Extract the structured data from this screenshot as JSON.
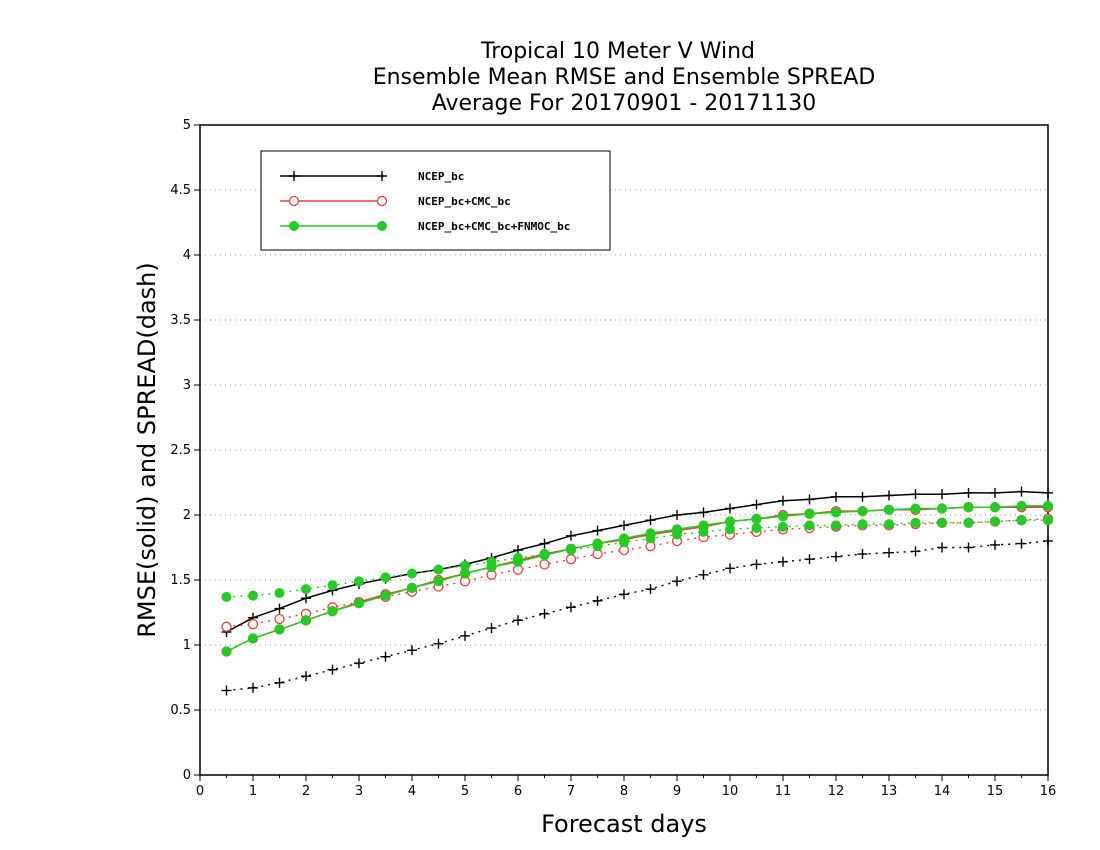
{
  "chart_data": {
    "type": "line",
    "title_lines": [
      "Tropical 10 Meter V Wind",
      "Ensemble Mean RMSE and Ensemble SPREAD",
      "Average For 20170901 - 20171130"
    ],
    "xlabel": "Forecast days",
    "ylabel": "RMSE(solid) and SPREAD(dash)",
    "xlim": [
      0,
      16
    ],
    "ylim": [
      0,
      5
    ],
    "xticks": [
      "0",
      "1",
      "2",
      "3",
      "4",
      "5",
      "6",
      "7",
      "8",
      "9",
      "10",
      "11",
      "12",
      "13",
      "14",
      "15",
      "16"
    ],
    "yticks": [
      "0",
      "0.5",
      "1",
      "1.5",
      "2",
      "2.5",
      "3",
      "3.5",
      "4",
      "4.5",
      "5"
    ],
    "grid": "horizontal-dotted",
    "legend_position": "top-left",
    "x": [
      0.5,
      1,
      1.5,
      2,
      2.5,
      3,
      3.5,
      4,
      4.5,
      5,
      5.5,
      6,
      6.5,
      7,
      7.5,
      8,
      8.5,
      9,
      9.5,
      10,
      10.5,
      11,
      11.5,
      12,
      12.5,
      13,
      13.5,
      14,
      14.5,
      15,
      15.5,
      16
    ],
    "series": [
      {
        "name": "NCEP_bc",
        "color": "#000000",
        "marker": "plus",
        "rmse": [
          1.1,
          1.21,
          1.28,
          1.36,
          1.42,
          1.47,
          1.51,
          1.55,
          1.58,
          1.62,
          1.67,
          1.73,
          1.78,
          1.84,
          1.88,
          1.92,
          1.96,
          2.0,
          2.02,
          2.05,
          2.08,
          2.11,
          2.12,
          2.14,
          2.14,
          2.15,
          2.16,
          2.16,
          2.17,
          2.17,
          2.18,
          2.17
        ],
        "spread": [
          0.65,
          0.67,
          0.71,
          0.76,
          0.81,
          0.86,
          0.91,
          0.96,
          1.01,
          1.07,
          1.13,
          1.19,
          1.24,
          1.29,
          1.34,
          1.39,
          1.43,
          1.49,
          1.54,
          1.59,
          1.62,
          1.64,
          1.66,
          1.68,
          1.7,
          1.71,
          1.72,
          1.75,
          1.75,
          1.77,
          1.78,
          1.8
        ]
      },
      {
        "name": "NCEP_bc+CMC_bc",
        "color": "#e8403a",
        "marker": "open-circle",
        "rmse": [
          0.95,
          1.05,
          1.12,
          1.19,
          1.26,
          1.33,
          1.39,
          1.44,
          1.5,
          1.55,
          1.6,
          1.65,
          1.7,
          1.74,
          1.78,
          1.81,
          1.85,
          1.88,
          1.91,
          1.95,
          1.97,
          2.0,
          2.01,
          2.03,
          2.03,
          2.04,
          2.04,
          2.05,
          2.06,
          2.06,
          2.06,
          2.06
        ],
        "spread": [
          1.14,
          1.16,
          1.2,
          1.24,
          1.29,
          1.33,
          1.37,
          1.41,
          1.45,
          1.49,
          1.54,
          1.58,
          1.62,
          1.66,
          1.7,
          1.73,
          1.76,
          1.8,
          1.83,
          1.85,
          1.87,
          1.89,
          1.9,
          1.91,
          1.92,
          1.92,
          1.93,
          1.94,
          1.94,
          1.95,
          1.96,
          1.97
        ]
      },
      {
        "name": "NCEP_bc+CMC_bc+FNMOC_bc",
        "color": "#22cc22",
        "marker": "filled-circle",
        "rmse": [
          0.95,
          1.05,
          1.12,
          1.19,
          1.26,
          1.32,
          1.38,
          1.44,
          1.49,
          1.55,
          1.6,
          1.64,
          1.69,
          1.74,
          1.78,
          1.82,
          1.86,
          1.89,
          1.92,
          1.95,
          1.97,
          1.99,
          2.01,
          2.02,
          2.03,
          2.04,
          2.05,
          2.05,
          2.06,
          2.06,
          2.07,
          2.07
        ],
        "spread": [
          1.37,
          1.38,
          1.4,
          1.43,
          1.46,
          1.49,
          1.52,
          1.55,
          1.58,
          1.61,
          1.64,
          1.67,
          1.7,
          1.73,
          1.76,
          1.79,
          1.82,
          1.85,
          1.87,
          1.89,
          1.9,
          1.91,
          1.92,
          1.92,
          1.93,
          1.93,
          1.94,
          1.94,
          1.94,
          1.95,
          1.96,
          1.96
        ]
      }
    ]
  }
}
